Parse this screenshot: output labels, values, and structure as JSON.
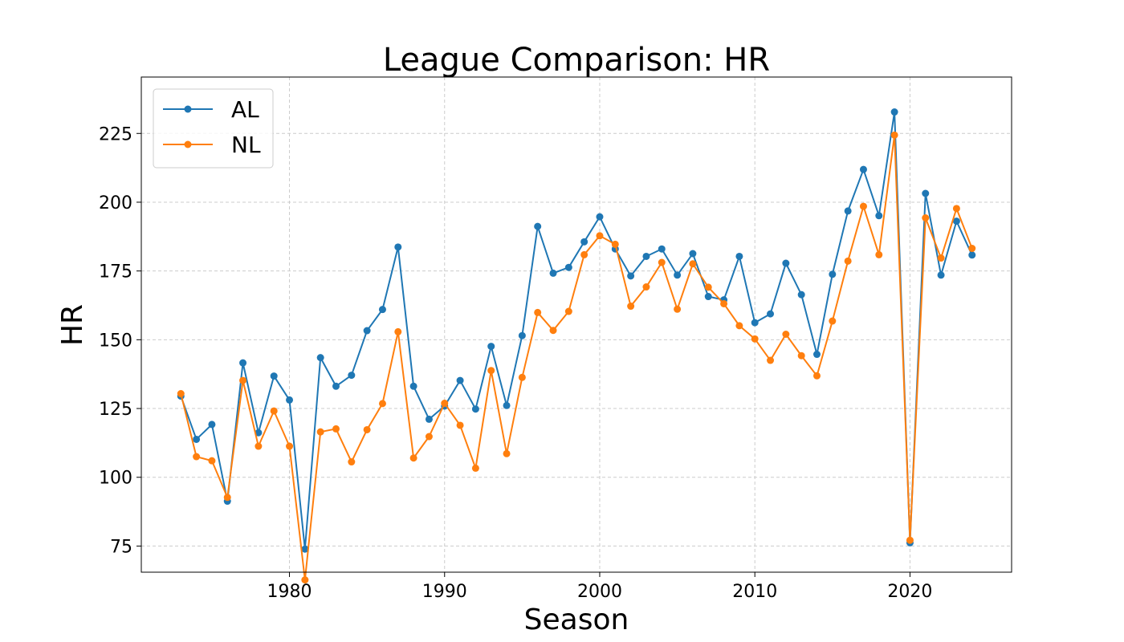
{
  "chart_data": {
    "type": "line",
    "title": "League Comparison: HR",
    "xlabel": "Season",
    "ylabel": "HR",
    "xlim": [
      1970.45,
      2026.55
    ],
    "ylim": [
      65.5,
      245.5
    ],
    "x_ticks": [
      1980,
      1990,
      2000,
      2010,
      2020
    ],
    "y_ticks": [
      75,
      100,
      125,
      150,
      175,
      200,
      225
    ],
    "grid": true,
    "legend_position": "top-left",
    "x": [
      1973,
      1974,
      1975,
      1976,
      1977,
      1978,
      1979,
      1980,
      1981,
      1982,
      1983,
      1984,
      1985,
      1986,
      1987,
      1988,
      1989,
      1990,
      1991,
      1992,
      1993,
      1994,
      1995,
      1996,
      1997,
      1998,
      1999,
      2000,
      2001,
      2002,
      2003,
      2004,
      2005,
      2006,
      2007,
      2008,
      2009,
      2010,
      2011,
      2012,
      2013,
      2014,
      2015,
      2016,
      2017,
      2018,
      2019,
      2020,
      2021,
      2022,
      2023,
      2024
    ],
    "series": [
      {
        "name": "AL",
        "color": "#1f77b4",
        "values": [
          129.5,
          113.8,
          119.2,
          91.3,
          141.6,
          116.2,
          136.8,
          128.1,
          73.9,
          143.5,
          133.1,
          137.1,
          153.3,
          161,
          183.7,
          133.1,
          121.1,
          125.9,
          135.2,
          124.8,
          147.6,
          126.1,
          151.5,
          191.2,
          174.2,
          176.3,
          185.6,
          194.7,
          183,
          173.2,
          180.3,
          183,
          173.5,
          181.3,
          165.7,
          164.5,
          180.3,
          156.2,
          159.4,
          177.8,
          166.4,
          144.7,
          173.8,
          196.8,
          211.9,
          195.1,
          232.8,
          76.2,
          203.2,
          173.5,
          193.1,
          180.8
        ]
      },
      {
        "name": "NL",
        "color": "#ff7f0e",
        "values": [
          130.4,
          107.5,
          106,
          92.7,
          135.2,
          111.3,
          124.1,
          111.3,
          62.7,
          116.5,
          117.6,
          105.6,
          117.3,
          126.8,
          152.9,
          107,
          114.8,
          126.9,
          118.9,
          103.3,
          138.8,
          108.6,
          136.3,
          159.9,
          153.4,
          160.3,
          180.9,
          187.8,
          184.7,
          162.2,
          169.2,
          178.1,
          161.1,
          177.6,
          169.1,
          163.1,
          155.1,
          150.3,
          142.5,
          152,
          144.2,
          136.9,
          156.8,
          178.6,
          198.5,
          180.9,
          224.4,
          77.1,
          194.3,
          179.7,
          197.7,
          183.2
        ]
      }
    ]
  }
}
